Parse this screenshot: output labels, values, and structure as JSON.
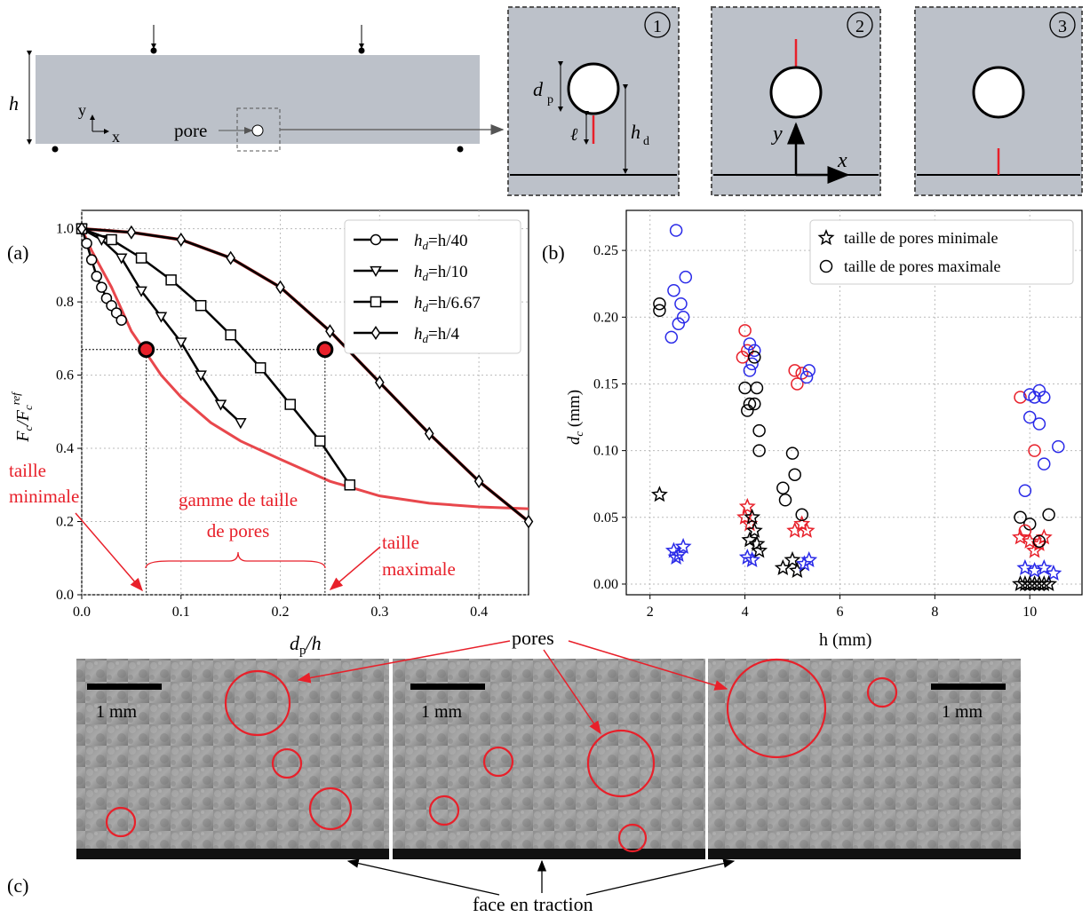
{
  "schematic": {
    "h_label": "h",
    "y_label": "y",
    "x_label": "x",
    "pore_label": "pore",
    "dp_label": "d",
    "dp_sub": "p",
    "l_label": "ℓ",
    "hd_label": "h",
    "hd_sub": "d",
    "zoom_y": "y",
    "zoom_x": "x",
    "panel_numbers": [
      "1",
      "2",
      "3"
    ]
  },
  "panel_a": {
    "label": "(a)",
    "xlabel_main": "d",
    "xlabel_sub": "p",
    "xlabel_rest": "/h",
    "ylabel": "F_c/F_c^ref",
    "annot_min": [
      "taille",
      "minimale"
    ],
    "annot_range": [
      "gamme de taille",
      "de pores"
    ],
    "annot_max": [
      "taille",
      "maximale"
    ]
  },
  "panel_b": {
    "label": "(b)",
    "xlabel": "h (mm)",
    "ylabel": "d_c (mm)"
  },
  "panel_c": {
    "label": "(c)",
    "pores_label": "pores",
    "face_label": "face en traction",
    "scale_label": "1 mm"
  },
  "chart_data": [
    {
      "type": "line",
      "xlim": [
        0,
        0.45
      ],
      "ylim": [
        0,
        1.05
      ],
      "xticks": [
        "0.0",
        "0.1",
        "0.2",
        "0.3",
        "0.4"
      ],
      "yticks": [
        "0.0",
        "0.2",
        "0.4",
        "0.6",
        "0.8",
        "1.0"
      ],
      "grid": true,
      "legend_position": "top-right",
      "series": [
        {
          "name": "h_d=h/40",
          "marker": "circle",
          "x": [
            0.0,
            0.005,
            0.01,
            0.015,
            0.02,
            0.025,
            0.03,
            0.035,
            0.04
          ],
          "y": [
            1.0,
            0.96,
            0.915,
            0.87,
            0.84,
            0.81,
            0.79,
            0.77,
            0.75
          ]
        },
        {
          "name": "h_d=h/10",
          "marker": "triangle",
          "x": [
            0.0,
            0.02,
            0.04,
            0.06,
            0.08,
            0.1,
            0.12,
            0.14,
            0.16
          ],
          "y": [
            1.0,
            0.97,
            0.92,
            0.83,
            0.76,
            0.69,
            0.6,
            0.52,
            0.47
          ]
        },
        {
          "name": "h_d=h/6.67",
          "marker": "square",
          "x": [
            0.0,
            0.03,
            0.06,
            0.09,
            0.12,
            0.15,
            0.18,
            0.21,
            0.24,
            0.27
          ],
          "y": [
            1.0,
            0.97,
            0.92,
            0.86,
            0.79,
            0.71,
            0.62,
            0.52,
            0.42,
            0.3
          ]
        },
        {
          "name": "h_d=h/4",
          "marker": "diamond",
          "x": [
            0.0,
            0.05,
            0.1,
            0.15,
            0.2,
            0.25,
            0.3,
            0.35,
            0.4,
            0.45
          ],
          "y": [
            1.0,
            0.99,
            0.97,
            0.92,
            0.84,
            0.72,
            0.58,
            0.44,
            0.31,
            0.2
          ]
        }
      ],
      "envelope": {
        "x": [
          0.0,
          0.01,
          0.02,
          0.03,
          0.04,
          0.05,
          0.065,
          0.08,
          0.1,
          0.13,
          0.16,
          0.2,
          0.25,
          0.3,
          0.35,
          0.4,
          0.45
        ],
        "y": [
          1.0,
          0.94,
          0.89,
          0.84,
          0.78,
          0.72,
          0.66,
          0.6,
          0.54,
          0.47,
          0.42,
          0.37,
          0.31,
          0.27,
          0.25,
          0.24,
          0.235
        ]
      },
      "threshold": {
        "y": 0.67,
        "x_min": 0.065,
        "x_max": 0.245
      }
    },
    {
      "type": "scatter",
      "xlim": [
        1.5,
        11.1
      ],
      "ylim": [
        -0.008,
        0.28
      ],
      "xticks": [
        "2",
        "4",
        "6",
        "8",
        "10"
      ],
      "yticks": [
        "0.00",
        "0.05",
        "0.10",
        "0.15",
        "0.20",
        "0.25"
      ],
      "grid": true,
      "legend_position": "top-right",
      "legend": [
        "taille de pores minimale",
        "taille de pores maximale"
      ],
      "series": [
        {
          "name": "taille de pores minimale",
          "marker": "star",
          "points": [
            [
              2.2,
              0.067,
              "black"
            ],
            [
              2.5,
              0.025,
              "blue"
            ],
            [
              2.6,
              0.022,
              "blue"
            ],
            [
              2.7,
              0.028,
              "blue"
            ],
            [
              2.55,
              0.02,
              "blue"
            ],
            [
              4.0,
              0.05,
              "red"
            ],
            [
              4.05,
              0.058,
              "red"
            ],
            [
              4.1,
              0.045,
              "red"
            ],
            [
              4.15,
              0.05,
              "black"
            ],
            [
              4.2,
              0.04,
              "black"
            ],
            [
              4.1,
              0.033,
              "black"
            ],
            [
              4.25,
              0.03,
              "black"
            ],
            [
              4.3,
              0.025,
              "black"
            ],
            [
              4.05,
              0.02,
              "blue"
            ],
            [
              4.15,
              0.018,
              "blue"
            ],
            [
              4.8,
              0.012,
              "black"
            ],
            [
              5.0,
              0.018,
              "black"
            ],
            [
              5.1,
              0.01,
              "black"
            ],
            [
              5.05,
              0.04,
              "red"
            ],
            [
              5.2,
              0.045,
              "red"
            ],
            [
              5.3,
              0.04,
              "red"
            ],
            [
              5.25,
              0.015,
              "blue"
            ],
            [
              5.35,
              0.018,
              "blue"
            ],
            [
              9.8,
              0.035,
              "red"
            ],
            [
              10.0,
              0.032,
              "red"
            ],
            [
              10.2,
              0.03,
              "red"
            ],
            [
              10.3,
              0.035,
              "red"
            ],
            [
              10.1,
              0.025,
              "red"
            ],
            [
              9.9,
              0.012,
              "blue"
            ],
            [
              10.1,
              0.01,
              "blue"
            ],
            [
              10.3,
              0.012,
              "blue"
            ],
            [
              10.5,
              0.008,
              "blue"
            ],
            [
              9.8,
              0.0,
              "black"
            ],
            [
              9.9,
              0.0,
              "black"
            ],
            [
              10.0,
              0.0,
              "black"
            ],
            [
              10.1,
              0.0,
              "black"
            ],
            [
              10.2,
              0.0,
              "black"
            ],
            [
              10.3,
              0.0,
              "black"
            ],
            [
              10.4,
              0.0,
              "black"
            ]
          ]
        },
        {
          "name": "taille de pores maximale",
          "marker": "circle",
          "points": [
            [
              2.2,
              0.205,
              "black"
            ],
            [
              2.2,
              0.21,
              "black"
            ],
            [
              2.55,
              0.265,
              "blue"
            ],
            [
              2.75,
              0.23,
              "blue"
            ],
            [
              2.5,
              0.22,
              "blue"
            ],
            [
              2.7,
              0.2,
              "blue"
            ],
            [
              2.6,
              0.195,
              "blue"
            ],
            [
              2.45,
              0.185,
              "blue"
            ],
            [
              2.65,
              0.21,
              "blue"
            ],
            [
              4.0,
              0.19,
              "red"
            ],
            [
              4.05,
              0.175,
              "red"
            ],
            [
              4.1,
              0.18,
              "blue"
            ],
            [
              4.2,
              0.175,
              "blue"
            ],
            [
              4.15,
              0.165,
              "blue"
            ],
            [
              3.95,
              0.17,
              "red"
            ],
            [
              4.1,
              0.16,
              "blue"
            ],
            [
              4.0,
              0.147,
              "black"
            ],
            [
              4.25,
              0.147,
              "black"
            ],
            [
              4.1,
              0.135,
              "black"
            ],
            [
              4.05,
              0.13,
              "black"
            ],
            [
              4.2,
              0.135,
              "black"
            ],
            [
              4.3,
              0.115,
              "black"
            ],
            [
              4.3,
              0.1,
              "black"
            ],
            [
              4.2,
              0.17,
              "black"
            ],
            [
              4.8,
              0.072,
              "black"
            ],
            [
              4.85,
              0.063,
              "black"
            ],
            [
              5.0,
              0.098,
              "black"
            ],
            [
              5.05,
              0.082,
              "black"
            ],
            [
              5.2,
              0.052,
              "black"
            ],
            [
              5.05,
              0.16,
              "red"
            ],
            [
              5.1,
              0.15,
              "red"
            ],
            [
              5.2,
              0.158,
              "red"
            ],
            [
              5.3,
              0.155,
              "blue"
            ],
            [
              5.35,
              0.16,
              "blue"
            ],
            [
              9.8,
              0.14,
              "red"
            ],
            [
              10.0,
              0.142,
              "blue"
            ],
            [
              10.1,
              0.14,
              "blue"
            ],
            [
              10.2,
              0.145,
              "blue"
            ],
            [
              10.3,
              0.14,
              "blue"
            ],
            [
              10.0,
              0.125,
              "blue"
            ],
            [
              10.2,
              0.12,
              "blue"
            ],
            [
              10.1,
              0.1,
              "red"
            ],
            [
              10.3,
              0.09,
              "blue"
            ],
            [
              9.9,
              0.07,
              "blue"
            ],
            [
              10.6,
              0.103,
              "blue"
            ],
            [
              9.8,
              0.05,
              "black"
            ],
            [
              10.0,
              0.045,
              "black"
            ],
            [
              10.2,
              0.032,
              "black"
            ],
            [
              10.4,
              0.052,
              "black"
            ],
            [
              9.9,
              0.04,
              "red"
            ]
          ]
        }
      ]
    }
  ]
}
